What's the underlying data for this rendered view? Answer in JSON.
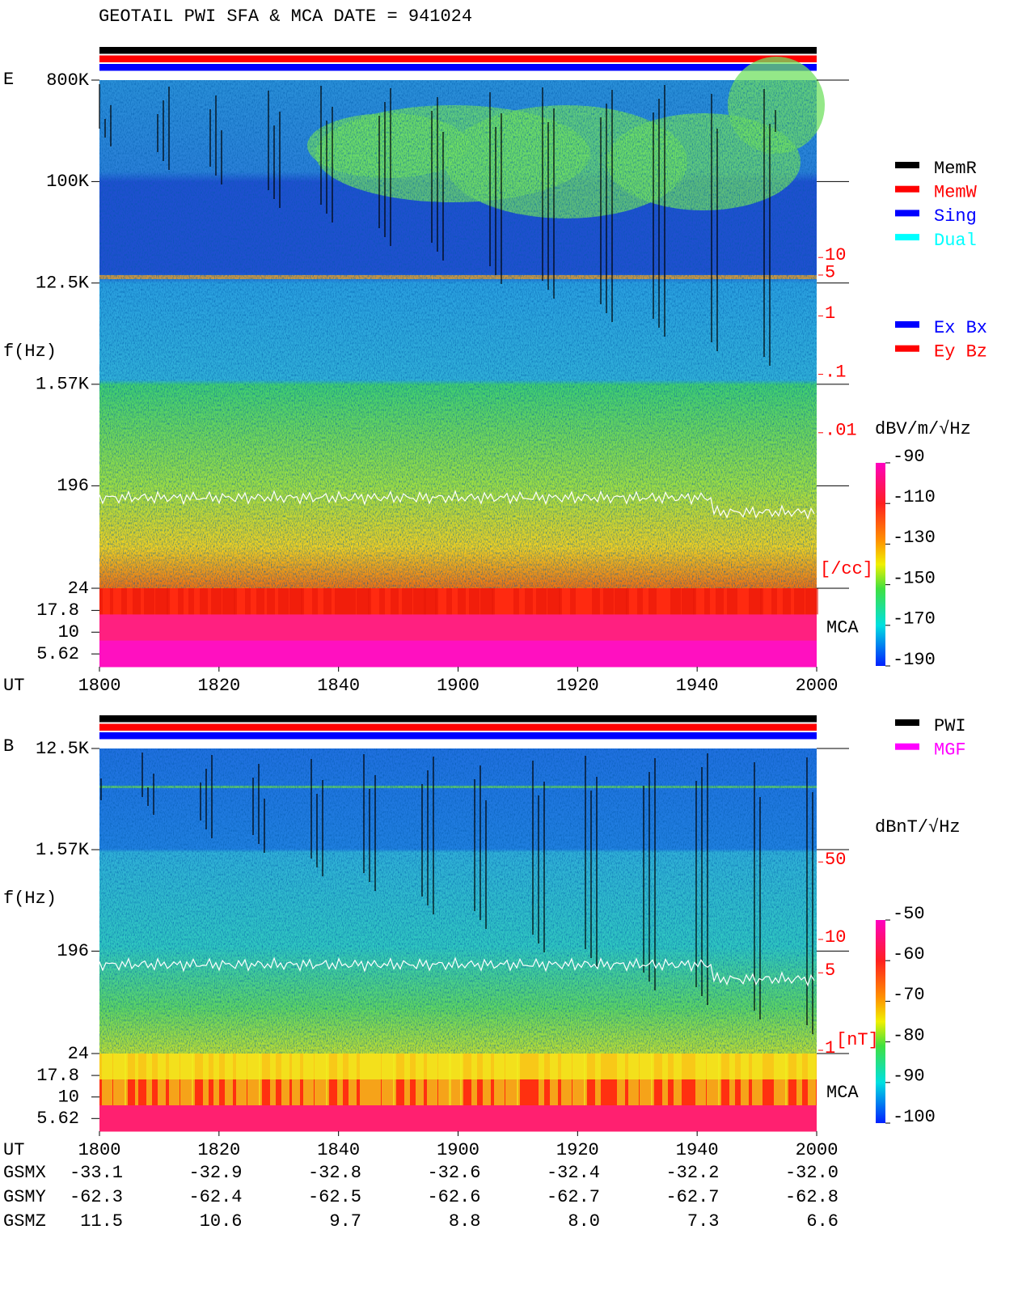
{
  "chart_data": [
    {
      "type": "spectrogram",
      "title": "GEOTAIL  PWI SFA & MCA   DATE = 941024",
      "panel_label": "E",
      "ylabel": "f(Hz)",
      "xlabel": "UT",
      "x": [
        "1800",
        "1820",
        "1840",
        "1900",
        "1920",
        "1940",
        "2000"
      ],
      "log_y": true,
      "ylim": [
        24,
        800000
      ],
      "yticks": [
        {
          "value": 800000,
          "label": "800K"
        },
        {
          "value": 100000,
          "label": "100K"
        },
        {
          "value": 12500,
          "label": "12.5K"
        },
        {
          "value": 1570,
          "label": "1.57K"
        },
        196,
        24
      ],
      "mca_label": "MCA",
      "mca_ylim": [
        4,
        32
      ],
      "mca_yticks": [
        17.8,
        10,
        5.62
      ],
      "zlabel": "dBV/m/√Hz",
      "zlim": [
        -190,
        -90
      ],
      "zticks": [
        -90,
        -110,
        -130,
        -150,
        -170,
        -190
      ],
      "density_lim": [
        0.001,
        100
      ],
      "density_ticks": [
        10,
        5,
        1,
        {
          "value": 0.1,
          "label": ".1"
        },
        {
          "value": 0.01,
          "label": ".01"
        }
      ],
      "density_unit": "[/cc]",
      "status_colors": [
        "#000000",
        "#ff0000",
        "#0000ff"
      ],
      "legend": [
        {
          "name": "MemR",
          "color": "#000000"
        },
        {
          "name": "MemW",
          "color": "#ff0000"
        },
        {
          "name": "Sing",
          "color": "#0000ff"
        },
        {
          "name": "Dual",
          "color": "#00ffff"
        }
      ],
      "legend2": [
        {
          "name": "Ex Bx",
          "color": "#0000ff"
        },
        {
          "name": "Ey Bz",
          "color": "#ff0000"
        }
      ]
    },
    {
      "type": "spectrogram",
      "panel_label": "B",
      "ylabel": "f(Hz)",
      "xlabel": "UT",
      "x": [
        "1800",
        "1820",
        "1840",
        "1900",
        "1920",
        "1940",
        "2000"
      ],
      "log_y": true,
      "ylim": [
        24,
        12500
      ],
      "yticks": [
        {
          "value": 12500,
          "label": "12.5K"
        },
        {
          "value": 1570,
          "label": "1.57K"
        },
        196,
        24
      ],
      "mca_label": "MCA",
      "mca_ylim": [
        4,
        32
      ],
      "mca_yticks": [
        17.8,
        10,
        5.62
      ],
      "zlabel": "dBnT/√Hz",
      "zlim": [
        -100,
        -50
      ],
      "zticks": [
        -50,
        -60,
        -70,
        -80,
        -90,
        -100
      ],
      "density_lim": [
        1,
        100
      ],
      "density_ticks": [
        50,
        10,
        5,
        1
      ],
      "density_unit": "[nT]",
      "status_colors": [
        "#000000",
        "#ff0000",
        "#0000ff"
      ],
      "legend": [
        {
          "name": "PWI",
          "color": "#000000"
        },
        {
          "name": "MGF",
          "color": "#ff00ff"
        }
      ]
    }
  ],
  "orbit": {
    "rows": [
      {
        "name": "GSMX",
        "values": [
          "-33.1",
          "-32.9",
          "-32.8",
          "-32.6",
          "-32.4",
          "-32.2",
          "-32.0"
        ]
      },
      {
        "name": "GSMY",
        "values": [
          "-62.3",
          "-62.4",
          "-62.5",
          "-62.6",
          "-62.7",
          "-62.7",
          "-62.8"
        ]
      },
      {
        "name": "GSMZ",
        "values": [
          "11.5",
          "10.6",
          "9.7",
          "8.8",
          "8.0",
          "7.3",
          "6.6"
        ]
      }
    ]
  }
}
